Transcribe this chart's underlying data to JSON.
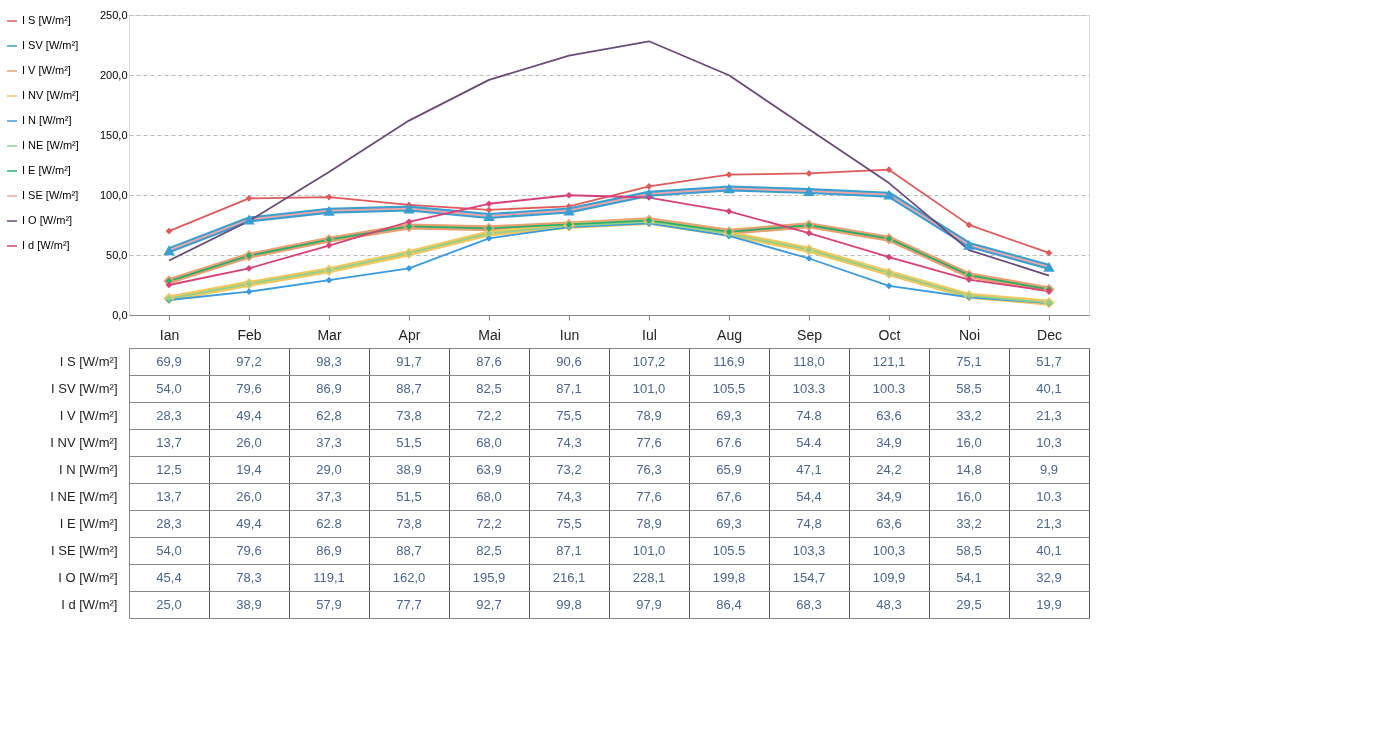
{
  "chart_data": {
    "type": "line",
    "categories": [
      "Ian",
      "Feb",
      "Mar",
      "Apr",
      "Mai",
      "Iun",
      "Iul",
      "Aug",
      "Sep",
      "Oct",
      "Noi",
      "Dec"
    ],
    "ylim": [
      0,
      250
    ],
    "yticks": [
      {
        "value": 0,
        "label": "0,0"
      },
      {
        "value": 50,
        "label": "50,0"
      },
      {
        "value": 100,
        "label": "100,0"
      },
      {
        "value": 150,
        "label": "150,0"
      },
      {
        "value": 200,
        "label": "200,0"
      },
      {
        "value": 250,
        "label": "250,0"
      }
    ],
    "grid": "y",
    "legend": "left",
    "marker": "diamond",
    "series": [
      {
        "name": "I S [W/m²]",
        "color": "#e05a5a",
        "values": [
          69.9,
          97.2,
          98.3,
          91.7,
          87.6,
          90.6,
          107.2,
          116.9,
          118.0,
          121.1,
          75.1,
          51.7
        ],
        "value_labels": [
          "69,9",
          "97,2",
          "98,3",
          "91,7",
          "87,6",
          "90,6",
          "107,2",
          "116,9",
          "118,0",
          "121,1",
          "75,1",
          "51,7"
        ]
      },
      {
        "name": "I SV [W/m²]",
        "color": "#3a9fd0",
        "marker": "triangle",
        "values": [
          54.0,
          79.6,
          86.9,
          88.7,
          82.5,
          87.1,
          101.0,
          105.5,
          103.3,
          100.3,
          58.5,
          40.1
        ],
        "value_labels": [
          "54,0",
          "79,6",
          "86,9",
          "88,7",
          "82,5",
          "87,1",
          "101,0",
          "105,5",
          "103.3",
          "100.3",
          "58,5",
          "40,1"
        ]
      },
      {
        "name": "I V [W/m²]",
        "color": "#e8a070",
        "values": [
          28.3,
          49.4,
          62.8,
          73.8,
          72.2,
          75.5,
          78.9,
          69.3,
          74.8,
          63.6,
          33.2,
          21.3
        ],
        "value_labels": [
          "28,3",
          "49,4",
          "62,8",
          "73,8",
          "72,2",
          "75,5",
          "78,9",
          "69,3",
          "74.8",
          "63,6",
          "33,2",
          "21,3"
        ]
      },
      {
        "name": "I NV [W/m²]",
        "color": "#f0c860",
        "values": [
          13.7,
          26.0,
          37.3,
          51.5,
          68.0,
          74.3,
          77.6,
          67.6,
          54.4,
          34.9,
          16.0,
          10.3
        ],
        "value_labels": [
          "13,7",
          "26,0",
          "37,3",
          "51,5",
          "68,0",
          "74,3",
          "77,6",
          "67.6",
          "54.4",
          "34,9",
          "16,0",
          "10,3"
        ]
      },
      {
        "name": "I N [W/m²]",
        "color": "#3a9ae0",
        "values": [
          12.5,
          19.4,
          29.0,
          38.9,
          63.9,
          73.2,
          76.3,
          65.9,
          47.1,
          24.2,
          14.8,
          9.9
        ],
        "value_labels": [
          "12,5",
          "19,4",
          "29,0",
          "38,9",
          "63,9",
          "73,2",
          "76,3",
          "65,9",
          "47,1",
          "24,2",
          "14,8",
          "9,9"
        ]
      },
      {
        "name": "I NE [W/m²]",
        "color": "#8fd08f",
        "values": [
          13.7,
          26.0,
          37.3,
          51.5,
          68.0,
          74.3,
          77.6,
          67.6,
          54.4,
          34.9,
          16.0,
          10.3
        ],
        "value_labels": [
          "13,7",
          "26,0",
          "37,3",
          "51,5",
          "68,0",
          "74,3",
          "77,6",
          "67,6",
          "54,4",
          "34,9",
          "16,0",
          "10.3"
        ]
      },
      {
        "name": "I E [W/m²]",
        "color": "#2aae6e",
        "values": [
          28.3,
          49.4,
          62.8,
          73.8,
          72.2,
          75.5,
          78.9,
          69.3,
          74.8,
          63.6,
          33.2,
          21.3
        ],
        "value_labels": [
          "28,3",
          "49,4",
          "62.8",
          "73,8",
          "72,2",
          "75,5",
          "78,9",
          "69,3",
          "74,8",
          "63,6",
          "33,2",
          "21,3"
        ]
      },
      {
        "name": "I SE [W/m²]",
        "color": "#f4a6a6",
        "marker": "none",
        "values": [
          54.0,
          79.6,
          86.9,
          88.7,
          82.5,
          87.1,
          101.0,
          105.5,
          103.3,
          100.3,
          58.5,
          40.1
        ],
        "value_labels": [
          "54,0",
          "79,6",
          "86,9",
          "88,7",
          "82,5",
          "87,1",
          "101,0",
          "105.5",
          "103,3",
          "100,3",
          "58,5",
          "40,1"
        ]
      },
      {
        "name": "I O [W/m²]",
        "color": "#6a4a7a",
        "marker": "none",
        "values": [
          45.4,
          78.3,
          119.1,
          162.0,
          195.9,
          216.1,
          228.1,
          199.8,
          154.7,
          109.9,
          54.1,
          32.9
        ],
        "value_labels": [
          "45,4",
          "78,3",
          "119,1",
          "162,0",
          "195,9",
          "216,1",
          "228,1",
          "199,8",
          "154,7",
          "109,9",
          "54,1",
          "32,9"
        ]
      },
      {
        "name": "I d [W/m²]",
        "color": "#d8407a",
        "values": [
          25.0,
          38.9,
          57.9,
          77.7,
          92.7,
          99.8,
          97.9,
          86.4,
          68.3,
          48.3,
          29.5,
          19.9
        ],
        "value_labels": [
          "25,0",
          "38,9",
          "57,9",
          "77,7",
          "92,7",
          "99,8",
          "97,9",
          "86,4",
          "68,3",
          "48,3",
          "29,5",
          "19,9"
        ]
      }
    ]
  }
}
